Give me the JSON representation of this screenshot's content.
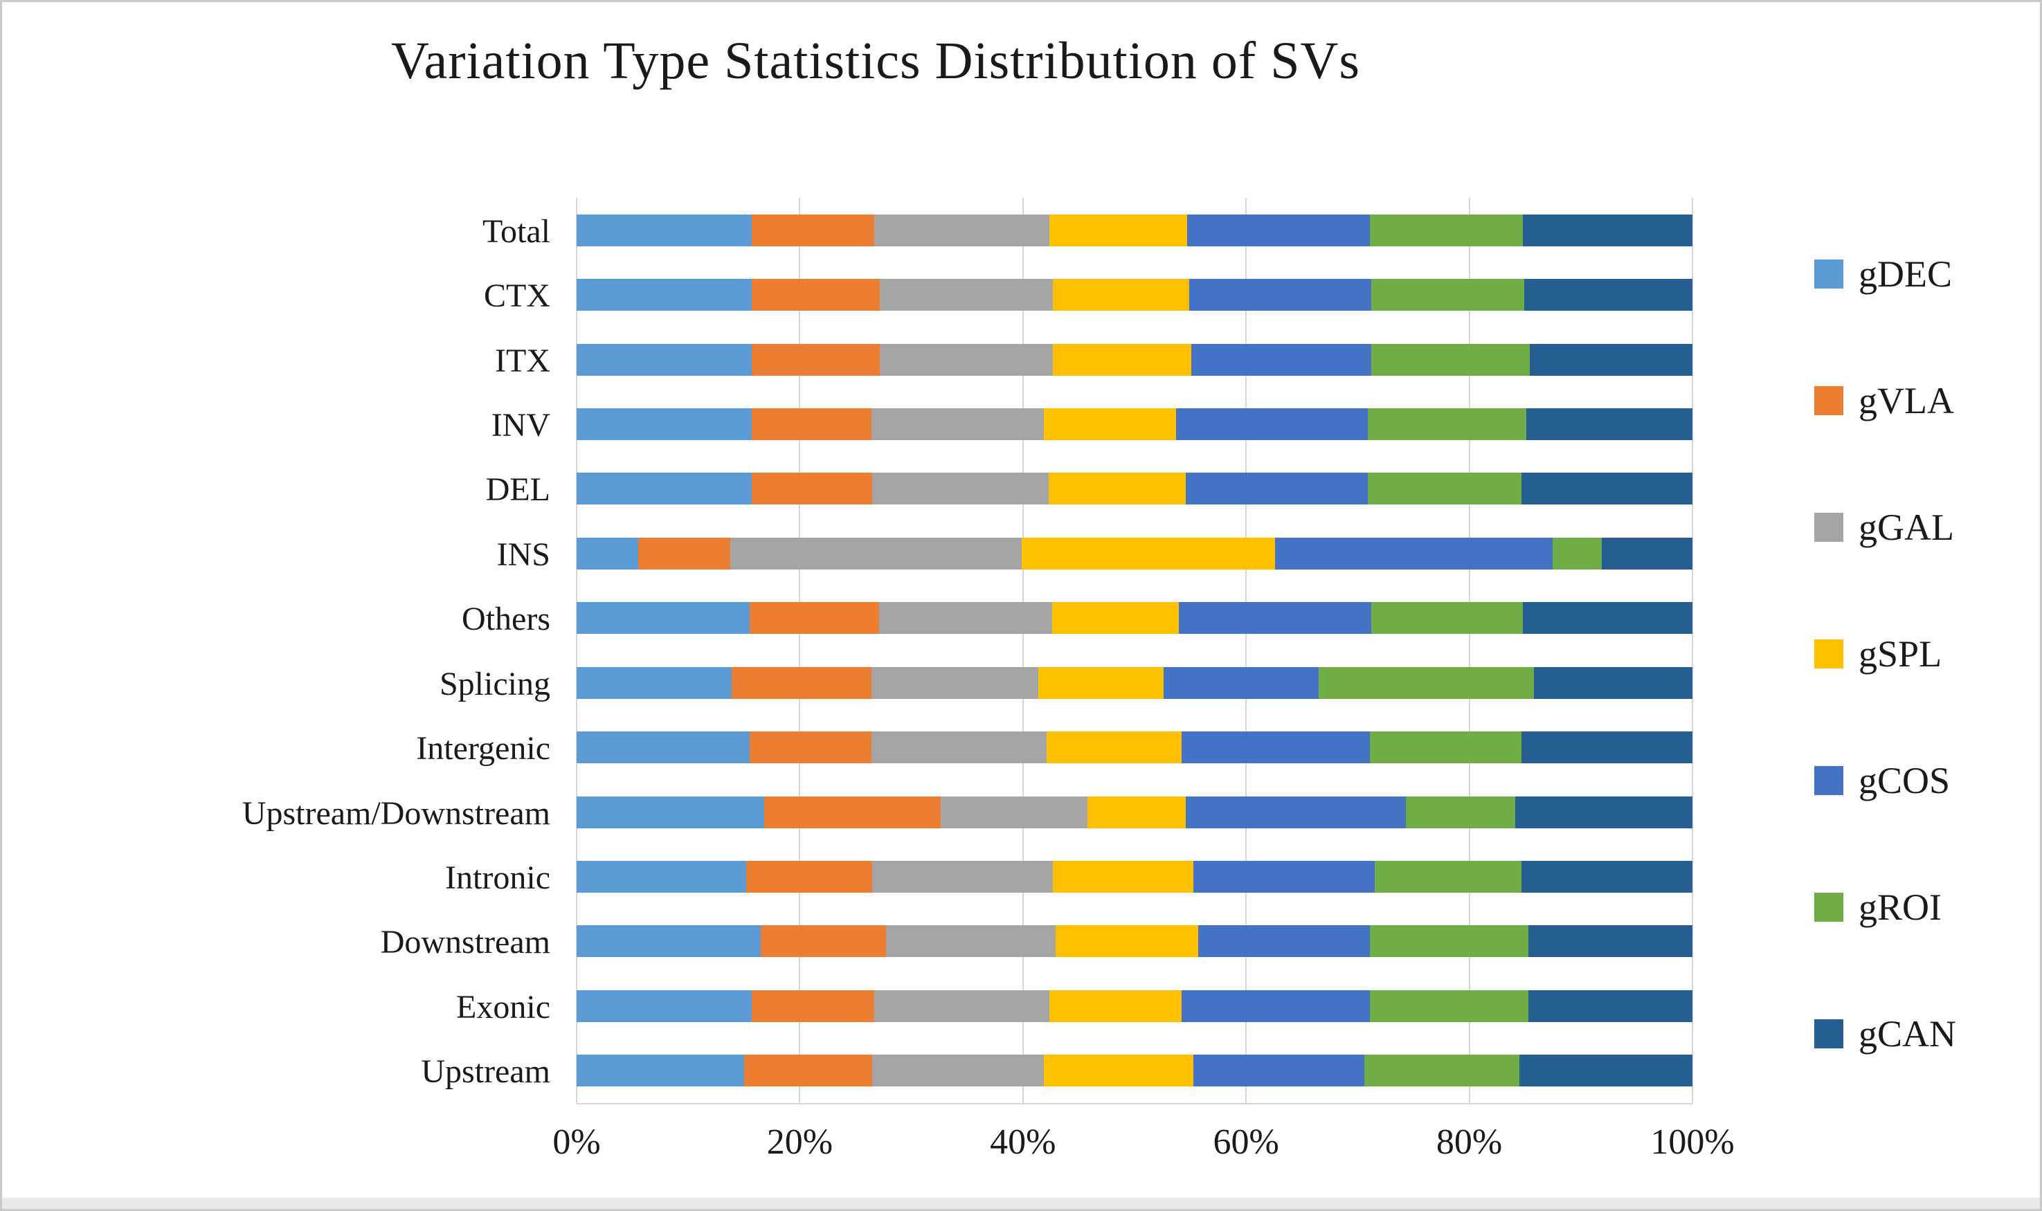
{
  "figure": {
    "title": "Variation Type Statistics Distribution of SVs"
  },
  "x_axis": {
    "ticks": [
      "0%",
      "20%",
      "40%",
      "60%",
      "80%",
      "100%"
    ]
  },
  "legend": {
    "position": "right",
    "items": [
      {
        "label": "gDEC",
        "color": "#5B9BD5"
      },
      {
        "label": "gVLA",
        "color": "#ED7D31"
      },
      {
        "label": "gGAL",
        "color": "#A5A5A5"
      },
      {
        "label": "gSPL",
        "color": "#FFC000"
      },
      {
        "label": "gCOS",
        "color": "#4472C4"
      },
      {
        "label": "gROI",
        "color": "#70AD47"
      },
      {
        "label": "gCAN",
        "color": "#255E91"
      }
    ]
  },
  "chart_data": {
    "type": "bar",
    "orientation": "horizontal",
    "stacked": true,
    "units": "percent",
    "title": "Variation Type Statistics Distribution of SVs",
    "xlabel": "",
    "ylabel": "",
    "xlim": [
      0,
      100
    ],
    "x_ticks": [
      "0%",
      "20%",
      "40%",
      "60%",
      "80%",
      "100%"
    ],
    "grid": true,
    "legend_position": "right",
    "categories": [
      "Total",
      "CTX",
      "ITX",
      "INV",
      "DEL",
      "INS",
      "Others",
      "Splicing",
      "Intergenic",
      "Upstream/Downstream",
      "Intronic",
      "Downstream",
      "Exonic",
      "Upstream"
    ],
    "series": [
      {
        "name": "gDEC",
        "color": "#5B9BD5",
        "values": [
          15.7,
          15.7,
          15.7,
          15.7,
          15.7,
          5.5,
          15.5,
          13.9,
          15.5,
          16.8,
          15.2,
          16.5,
          15.7,
          15.0
        ]
      },
      {
        "name": "gVLA",
        "color": "#ED7D31",
        "values": [
          11.0,
          11.5,
          11.5,
          10.7,
          10.8,
          8.3,
          11.6,
          12.5,
          10.9,
          15.8,
          11.3,
          11.2,
          11.0,
          11.5
        ]
      },
      {
        "name": "gGAL",
        "color": "#A5A5A5",
        "values": [
          15.7,
          15.5,
          15.5,
          15.5,
          15.8,
          26.1,
          15.5,
          15.0,
          15.7,
          13.2,
          16.2,
          15.2,
          15.7,
          15.4
        ]
      },
      {
        "name": "gSPL",
        "color": "#FFC000",
        "values": [
          12.3,
          12.2,
          12.4,
          11.8,
          12.3,
          22.7,
          11.4,
          11.2,
          12.1,
          8.8,
          12.6,
          12.8,
          11.8,
          13.4
        ]
      },
      {
        "name": "gCOS",
        "color": "#4472C4",
        "values": [
          16.4,
          16.3,
          16.1,
          17.2,
          16.3,
          24.9,
          17.2,
          13.9,
          16.9,
          19.7,
          16.2,
          15.4,
          16.9,
          15.3
        ]
      },
      {
        "name": "gROI",
        "color": "#70AD47",
        "values": [
          13.7,
          13.7,
          14.2,
          14.2,
          13.8,
          4.4,
          13.6,
          19.3,
          13.6,
          9.8,
          13.2,
          14.2,
          14.2,
          13.9
        ]
      },
      {
        "name": "gCAN",
        "color": "#255E91",
        "values": [
          15.2,
          15.1,
          14.6,
          14.9,
          15.3,
          8.1,
          15.2,
          14.2,
          15.3,
          15.9,
          15.3,
          14.7,
          14.7,
          15.5
        ]
      }
    ]
  },
  "colors": {
    "background": "#ffffff",
    "border": "#c9c9c9",
    "gridline": "#d6d6d6",
    "text": "#1a1a1a"
  }
}
